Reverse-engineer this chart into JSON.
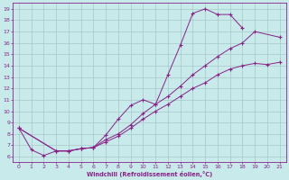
{
  "xlabel": "Windchill (Refroidissement éolien,°C)",
  "xlim": [
    -0.5,
    21.5
  ],
  "ylim": [
    5.5,
    19.5
  ],
  "xticks": [
    0,
    1,
    2,
    3,
    4,
    5,
    6,
    7,
    8,
    9,
    10,
    11,
    12,
    13,
    14,
    15,
    16,
    17,
    18,
    19,
    20,
    21
  ],
  "yticks": [
    6,
    7,
    8,
    9,
    10,
    11,
    12,
    13,
    14,
    15,
    16,
    17,
    18,
    19
  ],
  "bg_color": "#c8eaea",
  "grid_color": "#a8c8c8",
  "line_color": "#882288",
  "line1_x": [
    0,
    1,
    2,
    3,
    4,
    5,
    6,
    7,
    8,
    9,
    10,
    11,
    12,
    13,
    14,
    15,
    16,
    17,
    18
  ],
  "line1_y": [
    8.5,
    6.6,
    6.1,
    6.5,
    6.5,
    6.7,
    6.8,
    7.9,
    9.3,
    10.5,
    11.0,
    10.6,
    13.2,
    15.8,
    18.6,
    19.0,
    18.5,
    18.5,
    17.3
  ],
  "line2_x": [
    0,
    3,
    4,
    5,
    6,
    7,
    8,
    9,
    10,
    11,
    12,
    13,
    14,
    15,
    16,
    17,
    18,
    19,
    21
  ],
  "line2_y": [
    8.5,
    6.5,
    6.5,
    6.7,
    6.8,
    7.5,
    8.0,
    8.8,
    9.8,
    10.6,
    11.3,
    12.2,
    13.2,
    14.0,
    14.8,
    15.5,
    16.0,
    17.0,
    16.5
  ],
  "line3_x": [
    0,
    3,
    4,
    5,
    6,
    7,
    8,
    9,
    10,
    11,
    12,
    13,
    14,
    15,
    16,
    17,
    18,
    19,
    20,
    21
  ],
  "line3_y": [
    8.5,
    6.5,
    6.5,
    6.7,
    6.8,
    7.3,
    7.8,
    8.5,
    9.3,
    10.0,
    10.6,
    11.3,
    12.0,
    12.5,
    13.2,
    13.7,
    14.0,
    14.2,
    14.1,
    14.3
  ]
}
